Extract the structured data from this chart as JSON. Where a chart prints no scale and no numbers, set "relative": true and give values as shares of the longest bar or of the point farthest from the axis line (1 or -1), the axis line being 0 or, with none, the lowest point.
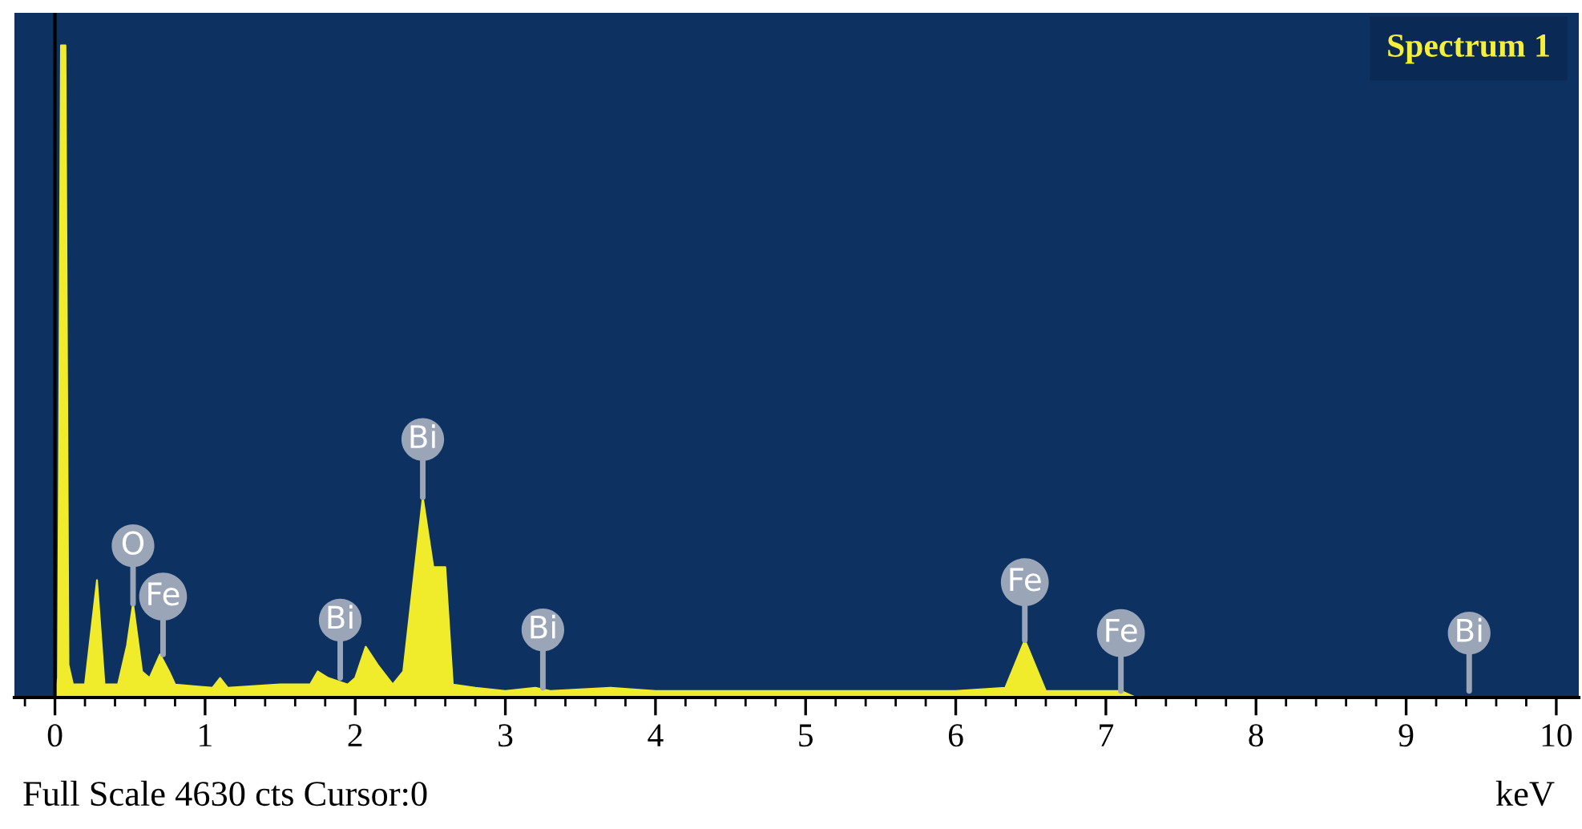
{
  "chart_data": {
    "type": "area",
    "relative": true,
    "title": "Spectrum 1",
    "xlabel": "keV",
    "x": [
      0.0,
      0.02,
      0.04,
      0.07,
      0.09,
      0.12,
      0.2,
      0.28,
      0.33,
      0.42,
      0.48,
      0.52,
      0.58,
      0.63,
      0.7,
      0.76,
      0.8,
      1.05,
      1.1,
      1.15,
      1.5,
      1.7,
      1.75,
      1.82,
      1.95,
      2.0,
      2.07,
      2.15,
      2.25,
      2.32,
      2.45,
      2.52,
      2.6,
      2.65,
      2.8,
      3.0,
      3.2,
      3.3,
      3.7,
      4.0,
      6.0,
      6.33,
      6.46,
      6.6,
      7.1,
      7.2,
      10.0
    ],
    "series": [
      {
        "color": "#f0ec2c",
        "values": [
          0,
          0.03,
          1.0,
          1.0,
          0.05,
          0.02,
          0.02,
          0.18,
          0.02,
          0.02,
          0.08,
          0.144,
          0.04,
          0.03,
          0.066,
          0.04,
          0.02,
          0.015,
          0.03,
          0.015,
          0.02,
          0.02,
          0.04,
          0.03,
          0.02,
          0.03,
          0.078,
          0.05,
          0.02,
          0.04,
          0.307,
          0.2,
          0.2,
          0.02,
          0.015,
          0.01,
          0.015,
          0.01,
          0.015,
          0.01,
          0.01,
          0.015,
          0.088,
          0.01,
          0.01,
          0,
          0
        ]
      }
    ],
    "xlim": [
      -0.27,
      10.15
    ],
    "xticks": [
      0,
      1,
      2,
      3,
      4,
      5,
      6,
      7,
      8,
      9,
      10
    ],
    "ref_lines": [
      {
        "axis": "x",
        "value": 0,
        "color": "#000000"
      }
    ],
    "annotations": [
      {
        "text": "O",
        "x": 0.52,
        "y": 0.144
      },
      {
        "text": "Fe",
        "x": 0.72,
        "y": 0.066
      },
      {
        "text": "Bi",
        "x": 1.9,
        "y": 0.03
      },
      {
        "text": "Bi",
        "x": 2.45,
        "y": 0.307
      },
      {
        "text": "Bi",
        "x": 3.25,
        "y": 0.015
      },
      {
        "text": "Fe",
        "x": 6.46,
        "y": 0.088
      },
      {
        "text": "Fe",
        "x": 7.1,
        "y": 0.01
      },
      {
        "text": "Bi",
        "x": 9.42,
        "y": 0.01
      },
      "Full Scale 4630 cts Cursor:0"
    ]
  }
}
